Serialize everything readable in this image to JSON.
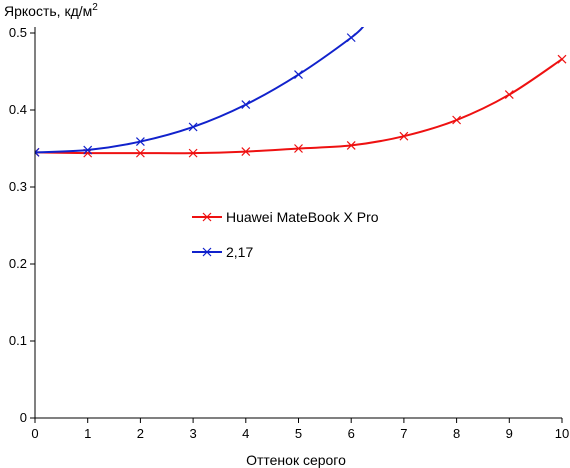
{
  "chart_data": {
    "type": "line",
    "title": "",
    "ylabel": "Яркость, кд/м",
    "ylabel_sup": "2",
    "xlabel": "Оттенок серого",
    "xlim": [
      0,
      10
    ],
    "ylim": [
      0,
      0.5
    ],
    "x_ticks": [
      "0",
      "1",
      "2",
      "3",
      "4",
      "5",
      "6",
      "7",
      "8",
      "9",
      "10"
    ],
    "y_ticks": [
      "0",
      "0.1",
      "0.2",
      "0.3",
      "0.4",
      "0.5"
    ],
    "grid": false,
    "legend_placement": "center",
    "series": [
      {
        "name": "Huawei MateBook X Pro",
        "color": "#ee1111",
        "marker": "x",
        "x": [
          0,
          1,
          2,
          3,
          4,
          5,
          6,
          7,
          8,
          9,
          10
        ],
        "values": [
          0.345,
          0.344,
          0.344,
          0.344,
          0.346,
          0.35,
          0.354,
          0.366,
          0.387,
          0.42,
          0.466
        ]
      },
      {
        "name": "2,17",
        "color": "#1122cc",
        "marker": "x",
        "x": [
          0,
          1,
          2,
          3,
          4,
          5,
          6,
          6.25
        ],
        "values": [
          0.345,
          0.348,
          0.359,
          0.378,
          0.407,
          0.446,
          0.494,
          0.51
        ],
        "marker_count": 7
      }
    ]
  }
}
